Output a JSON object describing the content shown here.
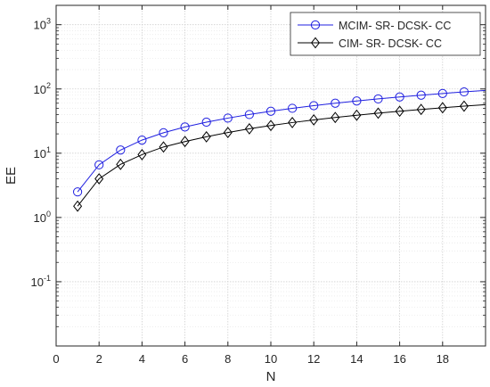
{
  "chart_data": {
    "type": "line",
    "title": "",
    "xlabel": "N",
    "ylabel": "EE",
    "xlim": [
      0,
      20
    ],
    "ylim": [
      0.01,
      2000
    ],
    "yscale": "log",
    "grid": true,
    "legend_position": "top-right",
    "x_ticks": [
      0,
      2,
      4,
      6,
      8,
      10,
      12,
      14,
      16,
      18
    ],
    "y_ticks": [
      {
        "base": "10",
        "exp": "-1",
        "value": 0.1
      },
      {
        "base": "10",
        "exp": "0",
        "value": 1
      },
      {
        "base": "10",
        "exp": "1",
        "value": 10
      },
      {
        "base": "10",
        "exp": "2",
        "value": 100
      },
      {
        "base": "10",
        "exp": "3",
        "value": 1000
      }
    ],
    "x": [
      1,
      2,
      3,
      4,
      5,
      6,
      7,
      8,
      9,
      10,
      11,
      12,
      13,
      14,
      15,
      16,
      17,
      18,
      19,
      20
    ],
    "series": [
      {
        "name": "MCIM- SR- DCSK- CC",
        "color": "#1f1fe0",
        "marker": "circle",
        "values": [
          2.5,
          6.6,
          11.2,
          16.0,
          20.8,
          25.6,
          30.4,
          35.2,
          40.0,
          45.0,
          50.0,
          55.0,
          60.0,
          65.0,
          70.0,
          75.0,
          80.0,
          85.0,
          90.0,
          95.0
        ]
      },
      {
        "name": "CIM- SR- DCSK- CC",
        "color": "#000000",
        "marker": "diamond",
        "values": [
          1.5,
          4.0,
          6.7,
          9.5,
          12.5,
          15.2,
          18.0,
          21.0,
          24.0,
          27.0,
          30.0,
          33.0,
          36.0,
          39.0,
          42.0,
          45.0,
          48.0,
          51.0,
          54.0,
          57.0
        ]
      }
    ]
  }
}
